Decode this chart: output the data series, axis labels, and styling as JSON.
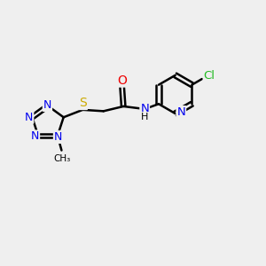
{
  "bg_color": "#efefef",
  "bond_color": "#000000",
  "bond_width": 1.8,
  "atom_colors": {
    "N": "#0000ee",
    "O": "#ee0000",
    "S": "#ccaa00",
    "Cl": "#22bb22",
    "C": "#000000"
  },
  "font_size": 9.0,
  "fig_size": [
    3.0,
    3.0
  ],
  "dpi": 100,
  "xlim": [
    0,
    10
  ],
  "ylim": [
    0,
    10
  ]
}
